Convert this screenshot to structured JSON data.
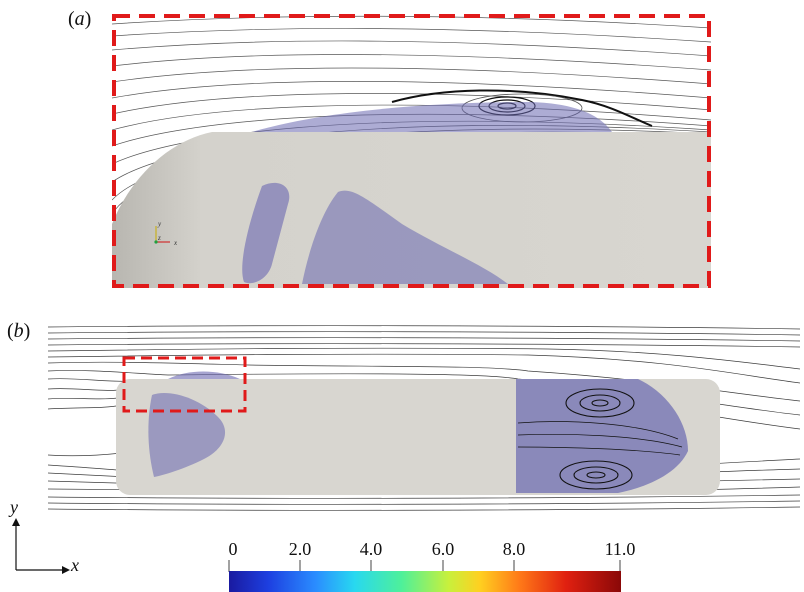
{
  "panel_a": {
    "label_prefix": "(",
    "label_letter": "a",
    "label_suffix": ")",
    "mini_axes": {
      "y": "y",
      "z": "z",
      "x": "x"
    }
  },
  "panel_b": {
    "label_prefix": "(",
    "label_letter": "b",
    "label_suffix": ")"
  },
  "axes": {
    "y_label": "y",
    "x_label": "x"
  },
  "colorbar": {
    "ticks": [
      "0",
      "2.0",
      "4.0",
      "6.0",
      "8.0",
      "11.0"
    ],
    "tick_values": [
      0,
      2.0,
      4.0,
      6.0,
      8.0,
      11.0
    ],
    "range": [
      0,
      11.0
    ],
    "colormap": "jet"
  },
  "colors": {
    "highlight_box": "#e01a1a",
    "body": "#d8d6d0",
    "iso_surface": "#6a68b0",
    "streamline": "#1a1a1a"
  }
}
